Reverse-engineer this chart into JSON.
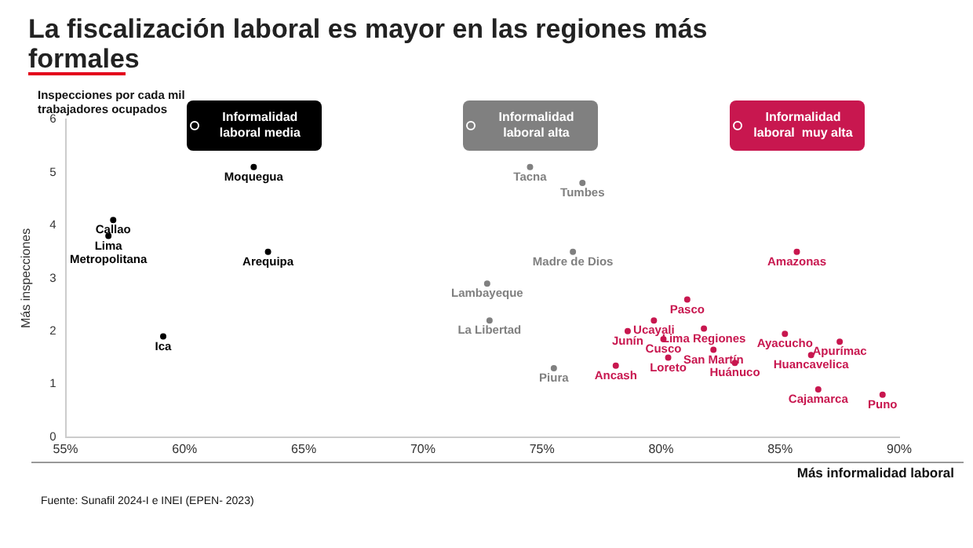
{
  "chart_data": {
    "type": "scatter",
    "title": "La fiscalización laboral es mayor en las regiones más formales",
    "xlabel": "Más informalidad laboral",
    "ylabel": "Más inspecciones",
    "annotations": [
      "Inspecciones por cada mil trabajadores ocupados",
      "Fuente: Sunafil 2024-I e INEI (EPEN- 2023)"
    ],
    "marker": "circle",
    "legend": "top",
    "grid": false,
    "xlim": [
      55,
      90
    ],
    "xticks": [
      {
        "value": 55,
        "label": "55%"
      },
      {
        "value": 60,
        "label": "60%"
      },
      {
        "value": 65,
        "label": "65%"
      },
      {
        "value": 70,
        "label": "70%"
      },
      {
        "value": 75,
        "label": "75%"
      },
      {
        "value": 80,
        "label": "80%"
      },
      {
        "value": 85,
        "label": "85%"
      },
      {
        "value": 90,
        "label": "90%"
      }
    ],
    "ylim": [
      0,
      6
    ],
    "yticks": [
      0,
      1,
      2,
      3,
      4,
      5,
      6
    ],
    "series": [
      {
        "name": "Informalidad laboral media",
        "color": "#000000",
        "x": [
          62.9,
          57.0,
          56.8,
          63.5,
          59.1
        ],
        "values": [
          5.1,
          4.1,
          3.8,
          3.5,
          1.9
        ],
        "value_labels": [
          "Moquegua",
          "Callao",
          "Lima\nMetropolitana",
          "Arequipa",
          "Ica"
        ]
      },
      {
        "name": "Informalidad laboral alta",
        "color": "#808080",
        "x": [
          74.5,
          76.7,
          76.3,
          72.7,
          72.8,
          75.5
        ],
        "values": [
          5.1,
          4.8,
          3.5,
          2.9,
          2.2,
          1.3
        ],
        "value_labels": [
          "Tacna",
          "Tumbes",
          "Madre de Dios",
          "Lambayeque",
          "La Libertad",
          "Piura"
        ]
      },
      {
        "name": "Informalidad laboral  muy alta",
        "color": "#c8174f",
        "x": [
          85.7,
          81.1,
          79.7,
          78.6,
          81.8,
          80.1,
          82.2,
          80.3,
          78.1,
          83.1,
          85.2,
          87.5,
          86.3,
          86.6,
          89.3
        ],
        "values": [
          3.5,
          2.6,
          2.2,
          2.0,
          2.05,
          1.85,
          1.65,
          1.5,
          1.35,
          1.4,
          1.95,
          1.8,
          1.55,
          0.9,
          0.8
        ],
        "value_labels": [
          "Amazonas",
          "Pasco",
          "Ucayali",
          "Junín",
          "Lima Regiones",
          "Cusco",
          "San Martín",
          "Loreto",
          "Ancash",
          "Huánuco",
          "Ayacucho",
          "Apurímac",
          "Huancavelica",
          "Cajamarca",
          "Puno"
        ]
      }
    ]
  }
}
